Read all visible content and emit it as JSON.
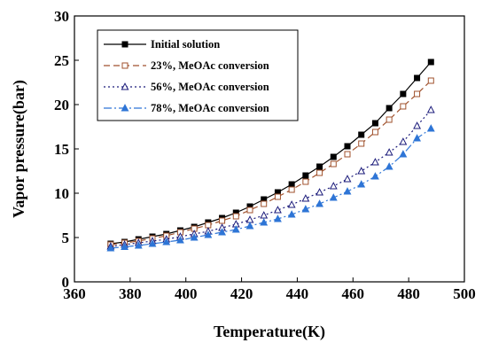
{
  "chart_data": {
    "type": "line",
    "title": "",
    "xlabel": "Temperature(K)",
    "ylabel": "Vapor pressure(bar)",
    "xlim": [
      360,
      500
    ],
    "ylim": [
      0,
      30
    ],
    "x_ticks": [
      "360",
      "380",
      "400",
      "420",
      "440",
      "460",
      "480",
      "500"
    ],
    "y_ticks": [
      "0",
      "5",
      "10",
      "15",
      "20",
      "25",
      "30"
    ],
    "legend_position": "top-left",
    "grid": false,
    "x": [
      373,
      378,
      383,
      388,
      393,
      398,
      403,
      408,
      413,
      418,
      423,
      428,
      433,
      438,
      443,
      448,
      453,
      458,
      463,
      468,
      473,
      478,
      483,
      488
    ],
    "series": [
      {
        "name": "Initial solution",
        "color": "#000000",
        "dash": "solid",
        "marker": "filled-square",
        "values": [
          4.3,
          4.5,
          4.8,
          5.1,
          5.4,
          5.8,
          6.2,
          6.7,
          7.2,
          7.8,
          8.5,
          9.3,
          10.1,
          11.0,
          12.0,
          13.0,
          14.1,
          15.3,
          16.6,
          17.9,
          19.6,
          21.2,
          23.0,
          24.8
        ]
      },
      {
        "name": "23%, MeOAc conversion",
        "color": "#a0522d",
        "dash": "dashed",
        "marker": "open-square",
        "values": [
          4.2,
          4.4,
          4.6,
          4.9,
          5.2,
          5.6,
          6.0,
          6.4,
          6.9,
          7.4,
          8.1,
          8.8,
          9.6,
          10.4,
          11.3,
          12.3,
          13.3,
          14.4,
          15.6,
          16.9,
          18.3,
          19.8,
          21.2,
          22.7
        ]
      },
      {
        "name": "56%, MeOAc conversion",
        "color": "#1a1a7a",
        "dash": "dotted",
        "marker": "open-triangle",
        "values": [
          4.0,
          4.2,
          4.4,
          4.6,
          4.8,
          5.1,
          5.4,
          5.7,
          6.1,
          6.5,
          7.0,
          7.5,
          8.1,
          8.7,
          9.4,
          10.1,
          10.8,
          11.6,
          12.5,
          13.5,
          14.6,
          15.8,
          17.6,
          19.4
        ]
      },
      {
        "name": "78%, MeOAc conversion",
        "color": "#2e75d6",
        "dash": "dashdot",
        "marker": "filled-triangle",
        "values": [
          3.8,
          3.95,
          4.1,
          4.3,
          4.5,
          4.7,
          5.0,
          5.3,
          5.6,
          5.9,
          6.3,
          6.7,
          7.1,
          7.6,
          8.2,
          8.8,
          9.5,
          10.2,
          11.0,
          11.9,
          13.0,
          14.4,
          16.2,
          17.3
        ]
      }
    ]
  }
}
